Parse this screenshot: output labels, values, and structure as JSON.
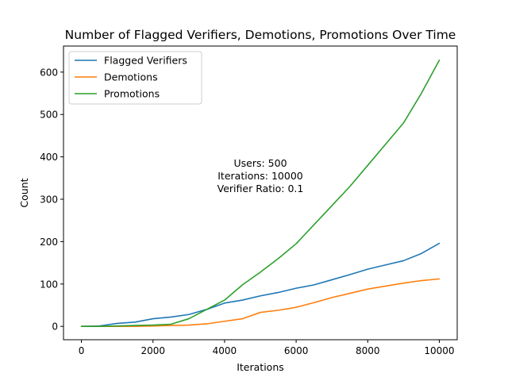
{
  "chart_data": {
    "type": "line",
    "title": "Number of Flagged Verifiers, Demotions, Promotions Over Time",
    "xlabel": "Iterations",
    "ylabel": "Count",
    "xlim": [
      -500,
      10500
    ],
    "ylim": [
      -31.5,
      661.5
    ],
    "xticks": [
      0,
      2000,
      4000,
      6000,
      8000,
      10000
    ],
    "yticks": [
      0,
      100,
      200,
      300,
      400,
      500,
      600
    ],
    "legend_position": "top-left",
    "grid": false,
    "annotation": [
      "Users: 500",
      "Iterations: 10000",
      "Verifier Ratio: 0.1"
    ],
    "x": [
      0,
      500,
      1000,
      1500,
      2000,
      2500,
      3000,
      3500,
      4000,
      4500,
      5000,
      5500,
      6000,
      6500,
      7000,
      7500,
      8000,
      8500,
      9000,
      9500,
      10000
    ],
    "series": [
      {
        "name": "Flagged Verifiers",
        "color": "#1f77b4",
        "values": [
          0,
          1,
          7,
          10,
          18,
          22,
          28,
          40,
          55,
          62,
          72,
          80,
          90,
          98,
          110,
          122,
          135,
          145,
          155,
          172,
          196
        ]
      },
      {
        "name": "Demotions",
        "color": "#ff7f0e",
        "values": [
          0,
          0,
          0,
          0,
          1,
          2,
          3,
          6,
          12,
          18,
          33,
          38,
          45,
          56,
          68,
          78,
          88,
          95,
          102,
          108,
          112
        ]
      },
      {
        "name": "Promotions",
        "color": "#2ca02c",
        "values": [
          0,
          0,
          1,
          2,
          3,
          5,
          18,
          40,
          62,
          98,
          128,
          160,
          195,
          240,
          285,
          330,
          380,
          430,
          480,
          550,
          628
        ]
      }
    ]
  }
}
